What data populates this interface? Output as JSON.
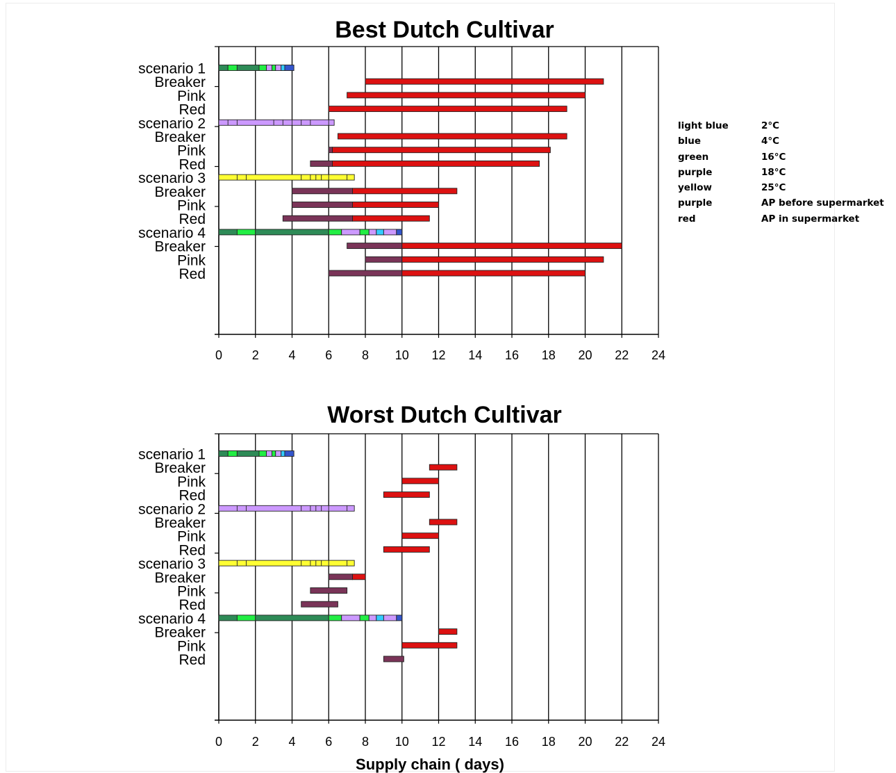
{
  "colors": {
    "lightblue": "#33ccff",
    "blue": "#3355cc",
    "green": "#22ee44",
    "darkgreen": "#2e8b57",
    "purple": "#cc99ff",
    "yellow": "#ffff33",
    "plum": "#7a3458",
    "red": "#dd1111"
  },
  "legend": [
    {
      "name": "light blue",
      "value": "2°C"
    },
    {
      "name": "blue",
      "value": "4°C"
    },
    {
      "name": "green",
      "value": "16°C"
    },
    {
      "name": "purple",
      "value": "18°C"
    },
    {
      "name": "yellow",
      "value": "25°C"
    },
    {
      "name": "purple",
      "value": "AP before supermarket"
    },
    {
      "name": "red",
      "value": "AP in supermarket"
    }
  ],
  "chart_data": [
    {
      "type": "bar",
      "orientation": "horizontal",
      "title": "Best Dutch Cultivar",
      "xlabel": "",
      "xlim": [
        0,
        24
      ],
      "xticks": [
        0,
        2,
        4,
        6,
        8,
        10,
        12,
        14,
        16,
        18,
        20,
        22,
        24
      ],
      "grid": "vertical",
      "categories": [
        "scenario 1",
        "Breaker",
        "Pink",
        "Red",
        "scenario 2",
        "Breaker",
        "Pink",
        "Red",
        "scenario 3",
        "Breaker",
        "Pink",
        "Red",
        "scenario 4",
        "Breaker",
        "Pink",
        "Red"
      ],
      "rows": [
        {
          "label": "scenario 1",
          "segments": [
            {
              "start": 0,
              "end": 0.5,
              "color": "darkgreen"
            },
            {
              "start": 0.5,
              "end": 1,
              "color": "green"
            },
            {
              "start": 1,
              "end": 2.2,
              "color": "darkgreen"
            },
            {
              "start": 2.2,
              "end": 2.6,
              "color": "green"
            },
            {
              "start": 2.6,
              "end": 2.9,
              "color": "purple"
            },
            {
              "start": 2.9,
              "end": 3.1,
              "color": "green"
            },
            {
              "start": 3.1,
              "end": 3.4,
              "color": "purple"
            },
            {
              "start": 3.4,
              "end": 3.6,
              "color": "lightblue"
            },
            {
              "start": 3.6,
              "end": 4.1,
              "color": "blue"
            }
          ]
        },
        {
          "label": "Breaker",
          "segments": [
            {
              "start": 8,
              "end": 21,
              "color": "red"
            }
          ]
        },
        {
          "label": "Pink",
          "segments": [
            {
              "start": 7,
              "end": 20,
              "color": "red"
            }
          ]
        },
        {
          "label": "Red",
          "segments": [
            {
              "start": 6,
              "end": 19,
              "color": "red"
            }
          ]
        },
        {
          "label": "scenario 2",
          "segments": [
            {
              "start": 0,
              "end": 6.3,
              "color": "purple",
              "ticks": [
                0.5,
                1,
                3,
                3.5,
                4,
                4.5,
                5,
                6
              ]
            }
          ]
        },
        {
          "label": "Breaker",
          "segments": [
            {
              "start": 6.5,
              "end": 19,
              "color": "red"
            }
          ]
        },
        {
          "label": "Pink",
          "segments": [
            {
              "start": 6,
              "end": 6.2,
              "color": "plum"
            },
            {
              "start": 6.2,
              "end": 18.1,
              "color": "red"
            }
          ]
        },
        {
          "label": "Red",
          "segments": [
            {
              "start": 5,
              "end": 6.2,
              "color": "plum"
            },
            {
              "start": 6.2,
              "end": 17.5,
              "color": "red"
            }
          ]
        },
        {
          "label": "scenario 3",
          "segments": [
            {
              "start": 0,
              "end": 7.4,
              "color": "yellow",
              "ticks": [
                1,
                1.5,
                4.5,
                5,
                5.3,
                5.6,
                6,
                7
              ]
            }
          ]
        },
        {
          "label": "Breaker",
          "segments": [
            {
              "start": 4,
              "end": 7.3,
              "color": "plum"
            },
            {
              "start": 7.3,
              "end": 13,
              "color": "red"
            }
          ]
        },
        {
          "label": "Pink",
          "segments": [
            {
              "start": 4,
              "end": 7.3,
              "color": "plum"
            },
            {
              "start": 7.3,
              "end": 12,
              "color": "red"
            }
          ]
        },
        {
          "label": "Red",
          "segments": [
            {
              "start": 3.5,
              "end": 7.3,
              "color": "plum"
            },
            {
              "start": 7.3,
              "end": 11.5,
              "color": "red"
            }
          ]
        },
        {
          "label": "scenario 4",
          "segments": [
            {
              "start": 0,
              "end": 1,
              "color": "darkgreen"
            },
            {
              "start": 1,
              "end": 2,
              "color": "green"
            },
            {
              "start": 2,
              "end": 6,
              "color": "darkgreen"
            },
            {
              "start": 6,
              "end": 6.7,
              "color": "green"
            },
            {
              "start": 6.7,
              "end": 7.7,
              "color": "purple"
            },
            {
              "start": 7.7,
              "end": 8.2,
              "color": "green"
            },
            {
              "start": 8.2,
              "end": 8.6,
              "color": "purple"
            },
            {
              "start": 8.6,
              "end": 9,
              "color": "lightblue"
            },
            {
              "start": 9,
              "end": 9.7,
              "color": "purple"
            },
            {
              "start": 9.7,
              "end": 10,
              "color": "blue"
            }
          ]
        },
        {
          "label": "Breaker",
          "segments": [
            {
              "start": 7,
              "end": 10,
              "color": "plum"
            },
            {
              "start": 10,
              "end": 22,
              "color": "red"
            }
          ]
        },
        {
          "label": "Pink",
          "segments": [
            {
              "start": 8,
              "end": 10,
              "color": "plum"
            },
            {
              "start": 10,
              "end": 21,
              "color": "red"
            }
          ]
        },
        {
          "label": "Red",
          "segments": [
            {
              "start": 6,
              "end": 10,
              "color": "plum"
            },
            {
              "start": 10,
              "end": 20,
              "color": "red"
            }
          ]
        }
      ]
    },
    {
      "type": "bar",
      "orientation": "horizontal",
      "title": "Worst Dutch Cultivar",
      "xlabel": "Supply chain ( days)",
      "xlim": [
        0,
        24
      ],
      "xticks": [
        0,
        2,
        4,
        6,
        8,
        10,
        12,
        14,
        16,
        18,
        20,
        22,
        24
      ],
      "grid": "vertical",
      "categories": [
        "scenario 1",
        "Breaker",
        "Pink",
        "Red",
        "scenario 2",
        "Breaker",
        "Pink",
        "Red",
        "scenario 3",
        "Breaker",
        "Pink",
        "Red",
        "scenario 4",
        "Breaker",
        "Pink",
        "Red"
      ],
      "rows": [
        {
          "label": "scenario 1",
          "segments": [
            {
              "start": 0,
              "end": 0.5,
              "color": "darkgreen"
            },
            {
              "start": 0.5,
              "end": 1,
              "color": "green"
            },
            {
              "start": 1,
              "end": 2.2,
              "color": "darkgreen"
            },
            {
              "start": 2.2,
              "end": 2.6,
              "color": "green"
            },
            {
              "start": 2.6,
              "end": 2.9,
              "color": "purple"
            },
            {
              "start": 2.9,
              "end": 3.1,
              "color": "green"
            },
            {
              "start": 3.1,
              "end": 3.4,
              "color": "purple"
            },
            {
              "start": 3.4,
              "end": 3.6,
              "color": "lightblue"
            },
            {
              "start": 3.6,
              "end": 4.1,
              "color": "blue"
            }
          ]
        },
        {
          "label": "Breaker",
          "segments": [
            {
              "start": 11.5,
              "end": 13,
              "color": "red"
            }
          ]
        },
        {
          "label": "Pink",
          "segments": [
            {
              "start": 10,
              "end": 12,
              "color": "red"
            }
          ]
        },
        {
          "label": "Red",
          "segments": [
            {
              "start": 9,
              "end": 11.5,
              "color": "red"
            }
          ]
        },
        {
          "label": "scenario 2",
          "segments": [
            {
              "start": 0,
              "end": 7.4,
              "color": "purple",
              "ticks": [
                1,
                1.5,
                4.5,
                5,
                5.3,
                5.6,
                6,
                7
              ]
            }
          ]
        },
        {
          "label": "Breaker",
          "segments": [
            {
              "start": 11.5,
              "end": 13,
              "color": "red"
            }
          ]
        },
        {
          "label": "Pink",
          "segments": [
            {
              "start": 10,
              "end": 12,
              "color": "red"
            }
          ]
        },
        {
          "label": "Red",
          "segments": [
            {
              "start": 9,
              "end": 11.5,
              "color": "red"
            }
          ]
        },
        {
          "label": "scenario 3",
          "segments": [
            {
              "start": 0,
              "end": 7.4,
              "color": "yellow",
              "ticks": [
                1,
                1.5,
                4.5,
                5,
                5.3,
                5.6,
                6,
                7
              ]
            }
          ]
        },
        {
          "label": "Breaker",
          "segments": [
            {
              "start": 6,
              "end": 7.3,
              "color": "plum"
            },
            {
              "start": 7.3,
              "end": 8,
              "color": "red"
            }
          ]
        },
        {
          "label": "Pink",
          "segments": [
            {
              "start": 5,
              "end": 7,
              "color": "plum"
            }
          ]
        },
        {
          "label": "Red",
          "segments": [
            {
              "start": 4.5,
              "end": 6.5,
              "color": "plum"
            }
          ]
        },
        {
          "label": "scenario 4",
          "segments": [
            {
              "start": 0,
              "end": 1,
              "color": "darkgreen"
            },
            {
              "start": 1,
              "end": 2,
              "color": "green"
            },
            {
              "start": 2,
              "end": 6,
              "color": "darkgreen"
            },
            {
              "start": 6,
              "end": 6.7,
              "color": "green"
            },
            {
              "start": 6.7,
              "end": 7.7,
              "color": "purple"
            },
            {
              "start": 7.7,
              "end": 8.2,
              "color": "green"
            },
            {
              "start": 8.2,
              "end": 8.6,
              "color": "purple"
            },
            {
              "start": 8.6,
              "end": 9,
              "color": "lightblue"
            },
            {
              "start": 9,
              "end": 9.7,
              "color": "purple"
            },
            {
              "start": 9.7,
              "end": 10,
              "color": "blue"
            }
          ]
        },
        {
          "label": "Breaker",
          "segments": [
            {
              "start": 12,
              "end": 13,
              "color": "red"
            }
          ]
        },
        {
          "label": "Pink",
          "segments": [
            {
              "start": 10,
              "end": 13,
              "color": "red"
            }
          ]
        },
        {
          "label": "Red",
          "segments": [
            {
              "start": 9,
              "end": 10.1,
              "color": "plum"
            }
          ]
        }
      ]
    }
  ]
}
